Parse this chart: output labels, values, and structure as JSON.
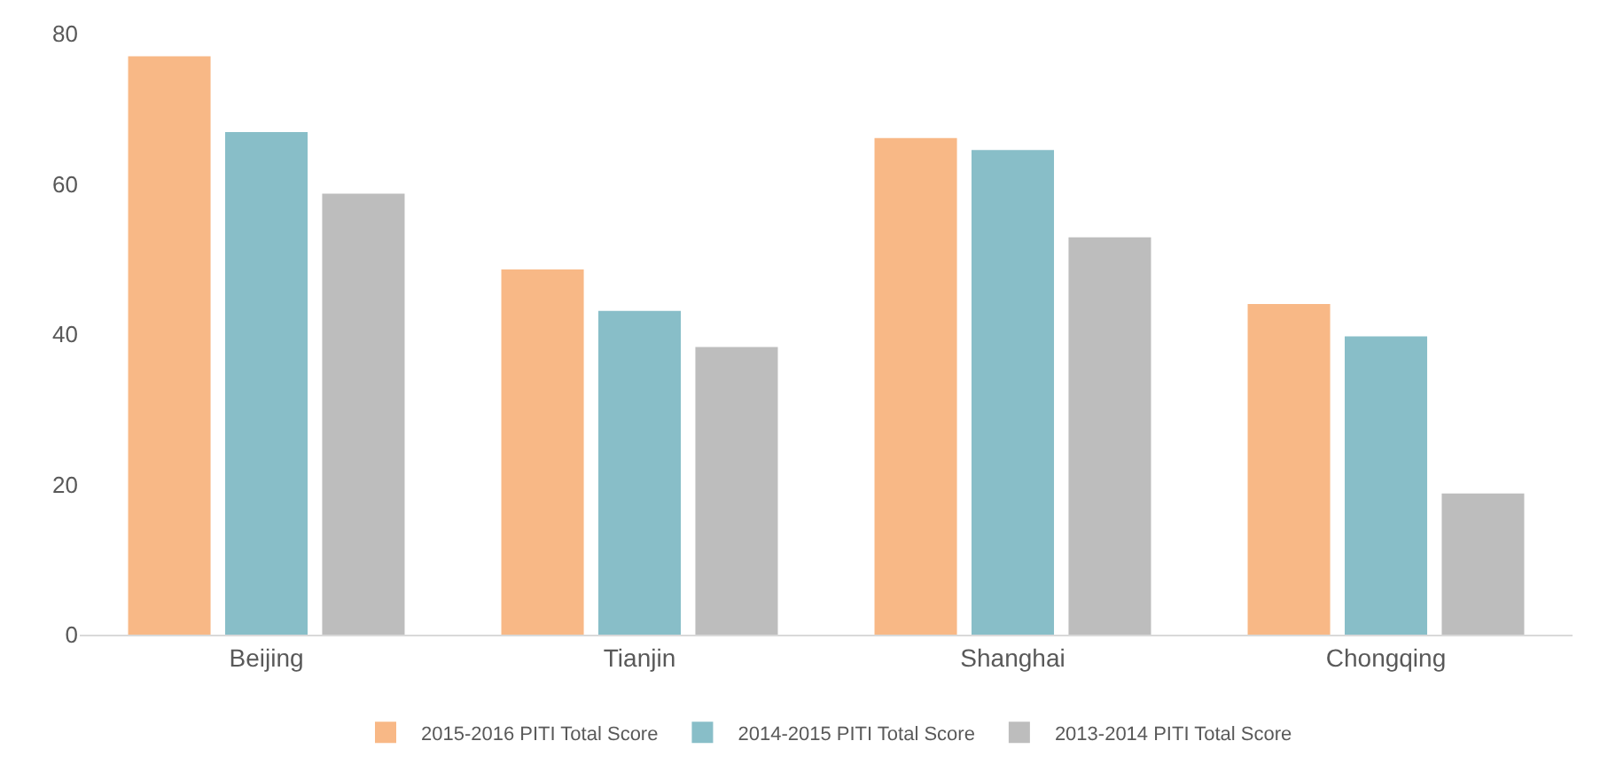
{
  "chart_data": {
    "type": "bar",
    "categories": [
      "Beijing",
      "Tianjin",
      "Shanghai",
      "Chongqing"
    ],
    "series": [
      {
        "name": "2015-2016 PITI Total Score",
        "color": "#f8b886",
        "values": [
          77.0,
          48.6,
          66.1,
          44.0
        ]
      },
      {
        "name": "2014-2015 PITI Total Score",
        "color": "#88bec8",
        "values": [
          66.9,
          43.1,
          64.5,
          39.7
        ]
      },
      {
        "name": "2013-2014 PITI Total Score",
        "color": "#bdbdbd",
        "values": [
          58.7,
          38.3,
          52.9,
          18.8
        ]
      }
    ],
    "ylim": [
      0,
      80
    ],
    "yticks": [
      0,
      20,
      40,
      60,
      80
    ],
    "legend": "bottom"
  }
}
